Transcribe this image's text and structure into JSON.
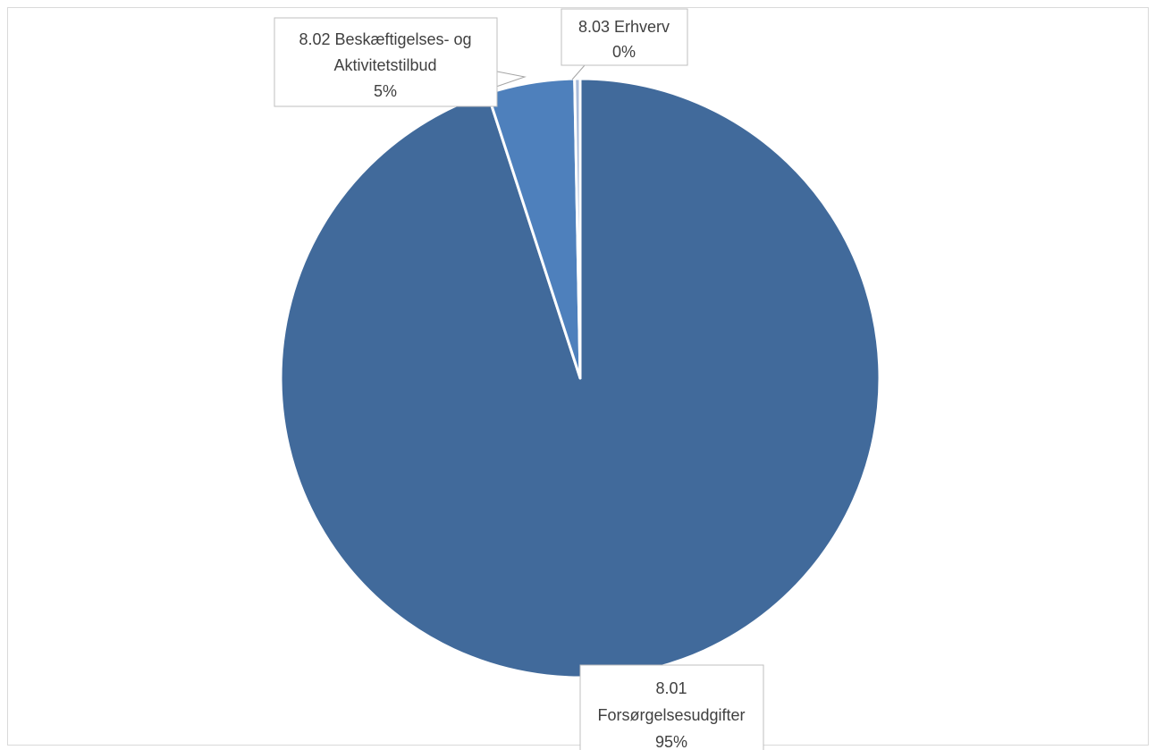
{
  "chart_data": {
    "type": "pie",
    "title": "",
    "slices": [
      {
        "category": "8.01 Forsørgelsesudgifter",
        "label_lines": [
          "8.01",
          "Forsørgelsesudgifter"
        ],
        "value": 95,
        "value_label": "95%",
        "color": "#416a9b"
      },
      {
        "category": "8.02 Beskæftigelses- og Aktivitetstilbud",
        "label_lines": [
          "8.02 Beskæftigelses- og",
          "Aktivitetstilbud"
        ],
        "value": 4.7,
        "value_label": "5%",
        "color": "#4e80bc"
      },
      {
        "category": "8.03 Erhverv",
        "label_lines": [
          "8.03 Erhverv"
        ],
        "value": 0.3,
        "value_label": "0%",
        "color": "#a9bbd9"
      }
    ],
    "start_angle": "12 o'clock",
    "direction": "clockwise",
    "legend": "none",
    "data_labels": "callout boxes with category and percentage"
  }
}
